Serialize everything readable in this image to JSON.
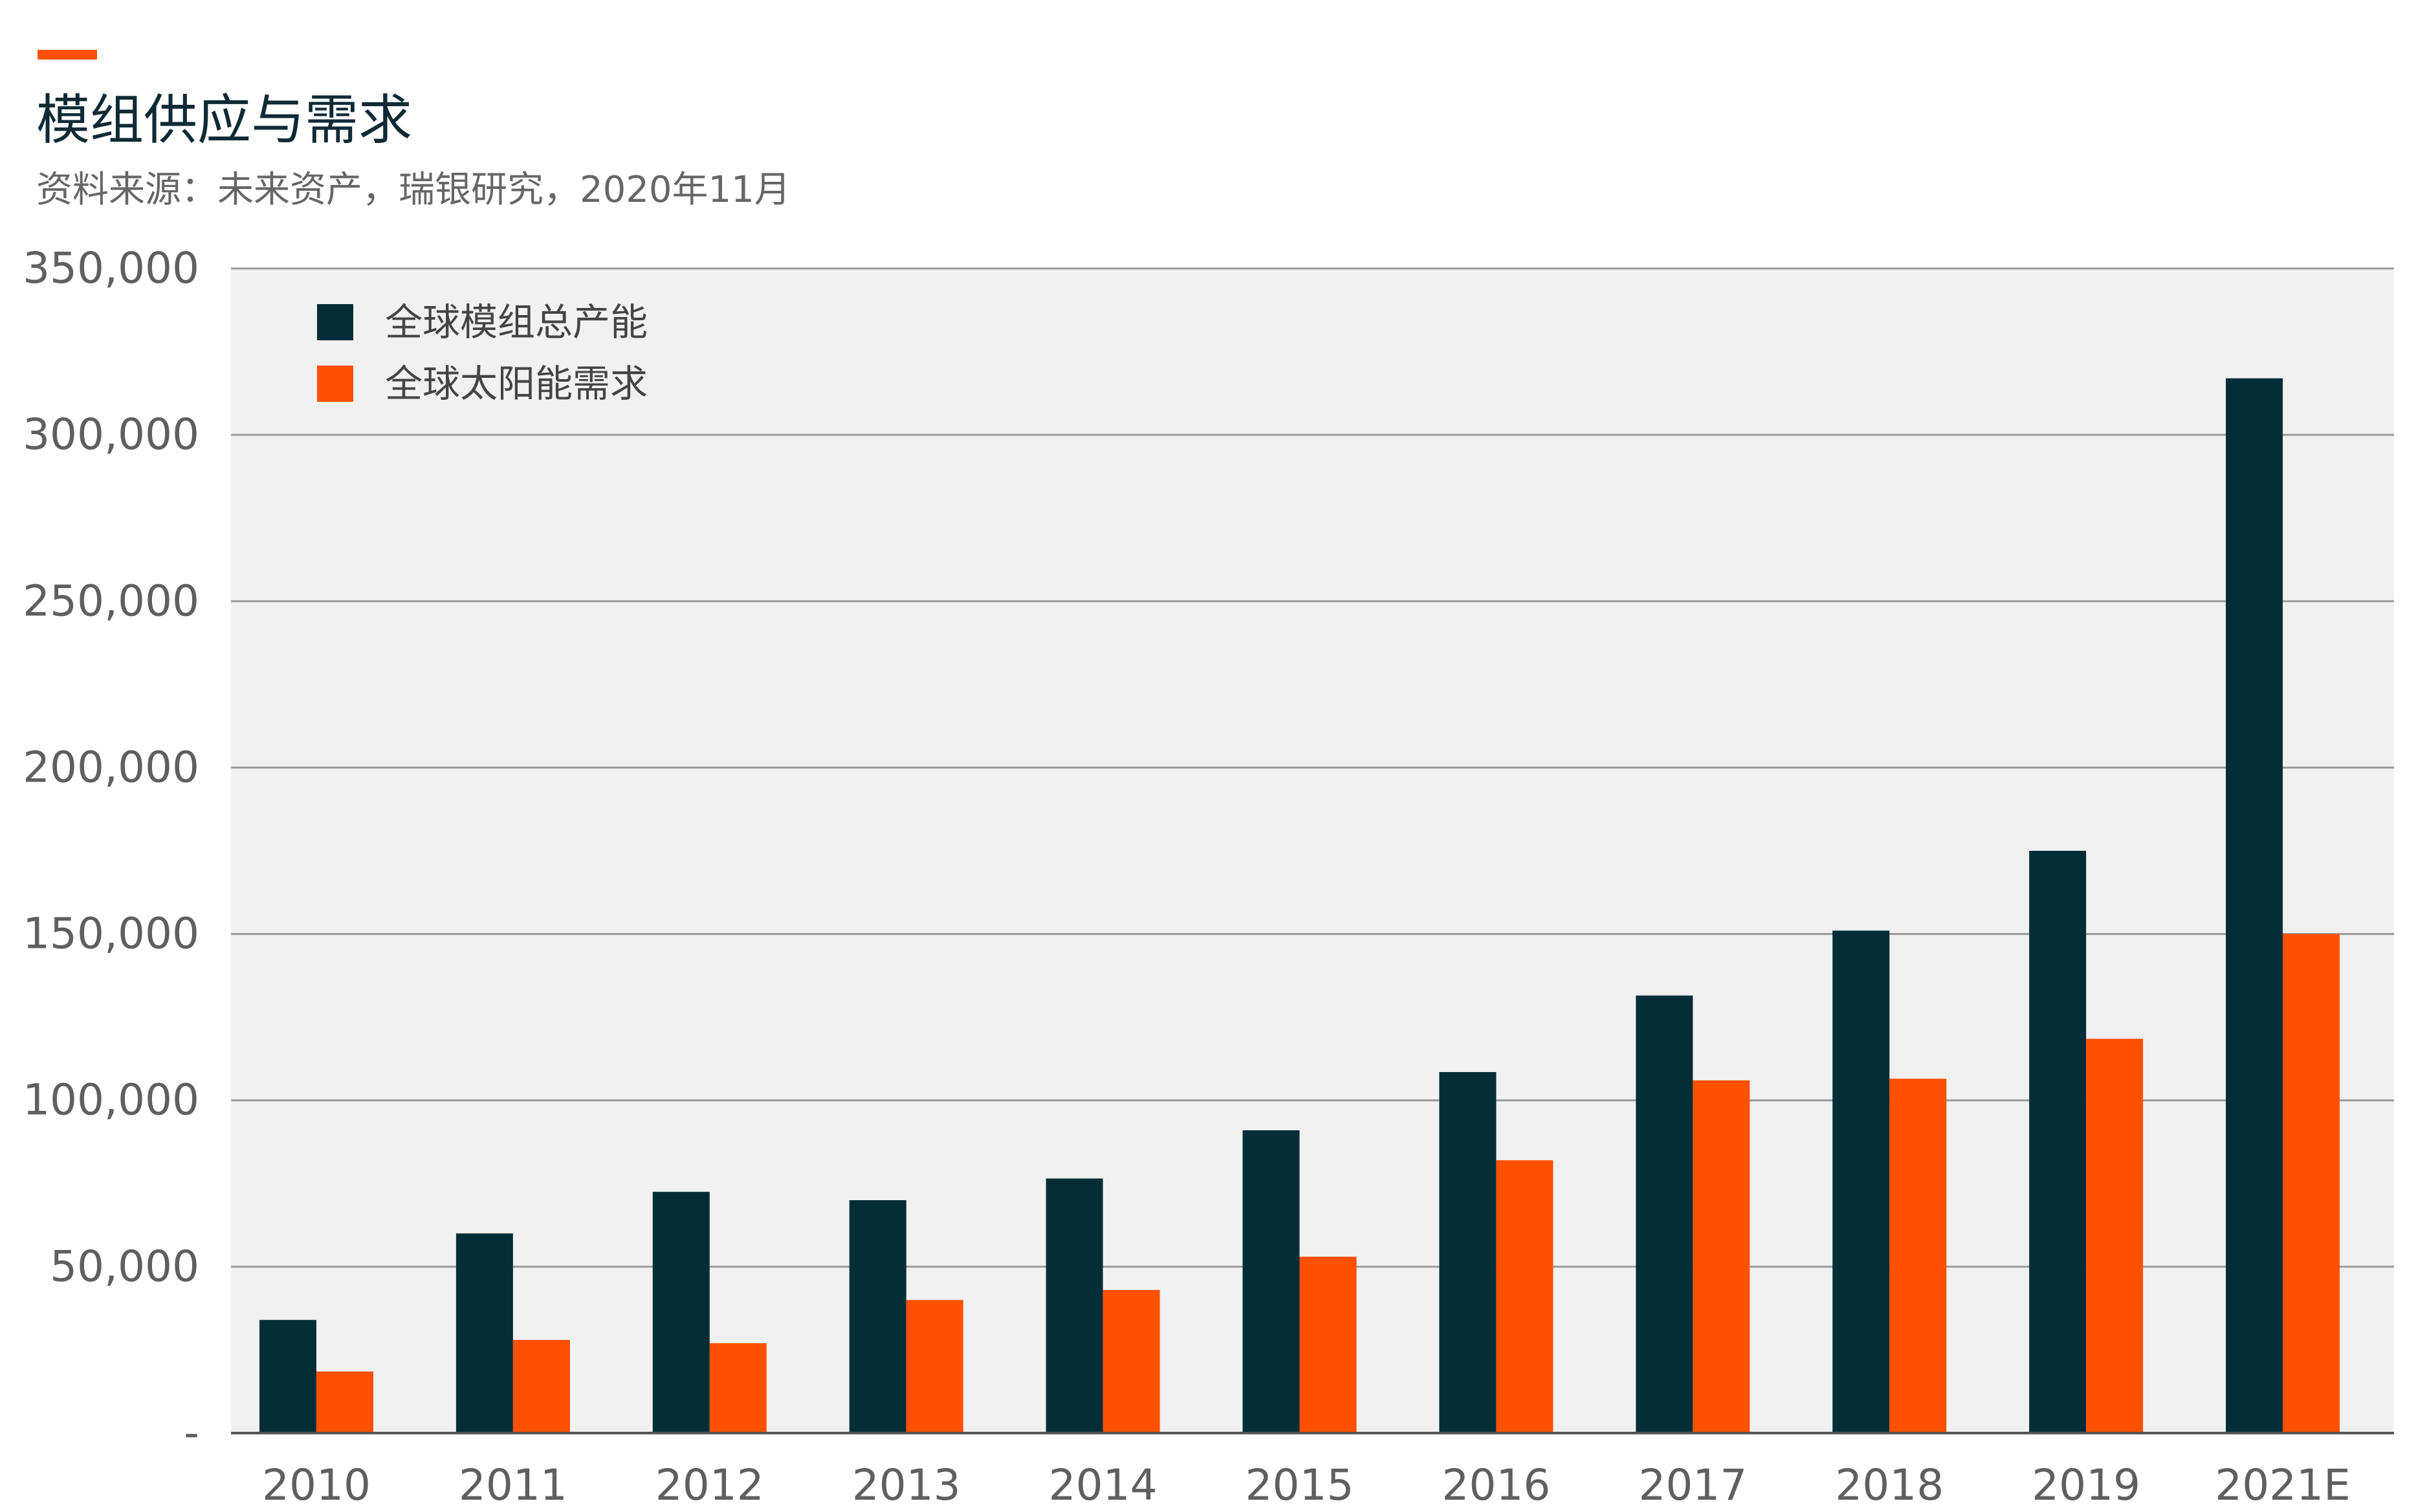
{
  "header": {
    "title": "模组供应与需求",
    "source": "资料来源：未来资产，瑞银研究，2020年11月"
  },
  "colors": {
    "accent": "#FF5000",
    "series_dark": "#032E38",
    "series_orange": "#FF5000",
    "plot_bg": "#F1F1F1",
    "grid": "#9A9A9A"
  },
  "chart_data": {
    "type": "bar",
    "title": "模组供应与需求",
    "xlabel": "",
    "ylabel": "",
    "categories": [
      "2010",
      "2011",
      "2012",
      "2013",
      "2014",
      "2015",
      "2016",
      "2017",
      "2018",
      "2019",
      "2021E"
    ],
    "series": [
      {
        "name": "全球模组总产能",
        "color": "#032E38",
        "values": [
          34000,
          60000,
          72500,
          70000,
          76500,
          91000,
          108500,
          131500,
          151000,
          175000,
          317000
        ]
      },
      {
        "name": "全球太阳能需求",
        "color": "#FF5000",
        "values": [
          18500,
          28000,
          27000,
          40000,
          43000,
          53000,
          82000,
          106000,
          106500,
          118500,
          150000
        ]
      }
    ],
    "ylim": [
      0,
      350000
    ],
    "yticks": [
      {
        "value": 0,
        "label": "-"
      },
      {
        "value": 50000,
        "label": "50,000"
      },
      {
        "value": 100000,
        "label": "100,000"
      },
      {
        "value": 150000,
        "label": "150,000"
      },
      {
        "value": 200000,
        "label": "200,000"
      },
      {
        "value": 250000,
        "label": "250,000"
      },
      {
        "value": 300000,
        "label": "300,000"
      },
      {
        "value": 350000,
        "label": "350,000"
      }
    ],
    "grid": true,
    "legend_position": "top-left"
  }
}
